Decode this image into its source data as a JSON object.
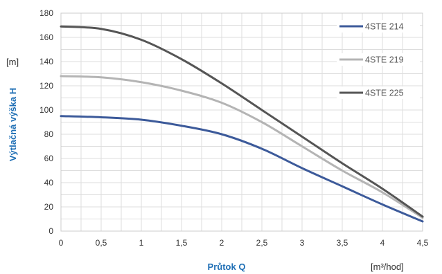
{
  "chart_data": {
    "type": "line",
    "xlabel": "Průtok Q",
    "x_unit": "[m³/hod]",
    "ylabel": "Výtlačná výška H",
    "y_unit": "[m]",
    "xlim": [
      0,
      4.5
    ],
    "ylim": [
      0,
      180
    ],
    "x_ticks": [
      "0",
      "0,5",
      "1",
      "1,5",
      "2",
      "2,5",
      "3",
      "3,5",
      "4",
      "4,5"
    ],
    "y_ticks": [
      "0",
      "20",
      "40",
      "60",
      "80",
      "100",
      "120",
      "140",
      "160",
      "180"
    ],
    "grid": true,
    "legend_position": "top-right",
    "x": [
      0,
      0.5,
      1,
      1.5,
      2,
      2.5,
      3,
      3.5,
      4,
      4.5
    ],
    "series": [
      {
        "name": "4STE 214",
        "color": "#3c5a9a",
        "values": [
          95,
          94,
          92,
          87,
          80,
          68,
          52,
          37,
          22,
          8
        ]
      },
      {
        "name": "4STE 219",
        "color": "#b4b4b4",
        "values": [
          128,
          127,
          123,
          116,
          106,
          90,
          70,
          50,
          32,
          11
        ]
      },
      {
        "name": "4STE 225",
        "color": "#555555",
        "values": [
          169,
          167,
          158,
          142,
          122,
          100,
          78,
          56,
          35,
          12
        ]
      }
    ],
    "colors": {
      "axis_title": "#1f6fb5",
      "grid": "#dddddd"
    }
  }
}
